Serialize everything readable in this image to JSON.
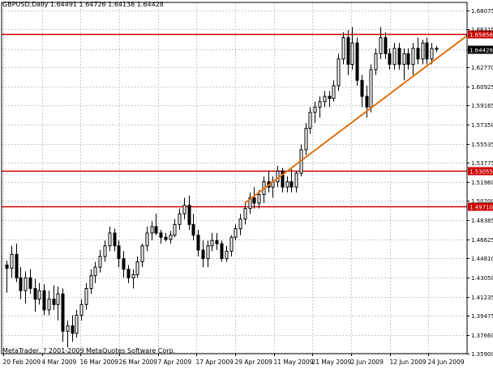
{
  "symbol_info": "GBPUSD,Daily  1.64491 1.64726 1.64138 1.64428",
  "copyright": "MetaTrader, ? 2001-2009 MetaQuotes Software Corp.",
  "colors": {
    "background": "#ffffff",
    "grid": "#c8c8c8",
    "frame": "#000000",
    "candle_body_up": "#ffffff",
    "candle_body_down": "#000000",
    "horizontal_lines": "#cc0000",
    "trend_line": "#e07010",
    "price_label_text": "#ffffff",
    "current_price_label_bg": "#000000"
  },
  "chart_data": {
    "type": "candlestick",
    "y_range": [
      1.359,
      1.688
    ],
    "y_ticks": [
      "1.68075",
      "1.66315",
      "1.64428",
      "1.62770",
      "1.60925",
      "1.59165",
      "1.57350",
      "1.55535",
      "1.53775",
      "1.51960",
      "1.50200",
      "1.48385",
      "1.46625",
      "1.44810",
      "1.43050",
      "1.41235",
      "1.39475",
      "1.37660",
      "1.35900"
    ],
    "x_labels": [
      "20 Feb 2009",
      "4 Mar 2009",
      "16 Mar 2009",
      "26 Mar 2009",
      "7 Apr 2009",
      "17 Apr 2009",
      "29 Apr 2009",
      "11 May 2009",
      "21 May 2009",
      "2 Jun 2009",
      "12 Jun 2009",
      "24 Jun 2009"
    ],
    "grid": true,
    "current_price": "1.64428",
    "horizontal_lines": [
      {
        "value": 1.65856,
        "label": "1.65856"
      },
      {
        "value": 1.53055,
        "label": "1.53055"
      },
      {
        "value": 1.4971,
        "label": "1.49710"
      }
    ],
    "trend_line": {
      "start": {
        "bar": 51,
        "price": 1.5
      },
      "end": {
        "bar": 95,
        "price": 1.645
      }
    },
    "candles": [
      {
        "o": 1.442,
        "h": 1.446,
        "l": 1.416,
        "c": 1.439
      },
      {
        "o": 1.439,
        "h": 1.46,
        "l": 1.43,
        "c": 1.452
      },
      {
        "o": 1.452,
        "h": 1.462,
        "l": 1.426,
        "c": 1.43
      },
      {
        "o": 1.43,
        "h": 1.44,
        "l": 1.41,
        "c": 1.418
      },
      {
        "o": 1.418,
        "h": 1.436,
        "l": 1.406,
        "c": 1.43
      },
      {
        "o": 1.43,
        "h": 1.438,
        "l": 1.415,
        "c": 1.42
      },
      {
        "o": 1.42,
        "h": 1.429,
        "l": 1.398,
        "c": 1.41
      },
      {
        "o": 1.41,
        "h": 1.425,
        "l": 1.405,
        "c": 1.418
      },
      {
        "o": 1.418,
        "h": 1.424,
        "l": 1.395,
        "c": 1.4
      },
      {
        "o": 1.4,
        "h": 1.418,
        "l": 1.395,
        "c": 1.41
      },
      {
        "o": 1.41,
        "h": 1.423,
        "l": 1.4,
        "c": 1.405
      },
      {
        "o": 1.405,
        "h": 1.422,
        "l": 1.39,
        "c": 1.415
      },
      {
        "o": 1.415,
        "h": 1.42,
        "l": 1.37,
        "c": 1.38
      },
      {
        "o": 1.38,
        "h": 1.39,
        "l": 1.365,
        "c": 1.385
      },
      {
        "o": 1.385,
        "h": 1.395,
        "l": 1.37,
        "c": 1.378
      },
      {
        "o": 1.378,
        "h": 1.4,
        "l": 1.374,
        "c": 1.395
      },
      {
        "o": 1.395,
        "h": 1.41,
        "l": 1.39,
        "c": 1.405
      },
      {
        "o": 1.405,
        "h": 1.425,
        "l": 1.4,
        "c": 1.42
      },
      {
        "o": 1.42,
        "h": 1.438,
        "l": 1.415,
        "c": 1.432
      },
      {
        "o": 1.432,
        "h": 1.445,
        "l": 1.425,
        "c": 1.44
      },
      {
        "o": 1.44,
        "h": 1.456,
        "l": 1.435,
        "c": 1.45
      },
      {
        "o": 1.45,
        "h": 1.465,
        "l": 1.445,
        "c": 1.46
      },
      {
        "o": 1.46,
        "h": 1.478,
        "l": 1.455,
        "c": 1.472
      },
      {
        "o": 1.472,
        "h": 1.476,
        "l": 1.455,
        "c": 1.46
      },
      {
        "o": 1.46,
        "h": 1.465,
        "l": 1.44,
        "c": 1.448
      },
      {
        "o": 1.448,
        "h": 1.455,
        "l": 1.43,
        "c": 1.438
      },
      {
        "o": 1.438,
        "h": 1.442,
        "l": 1.425,
        "c": 1.43
      },
      {
        "o": 1.43,
        "h": 1.438,
        "l": 1.42,
        "c": 1.433
      },
      {
        "o": 1.433,
        "h": 1.45,
        "l": 1.43,
        "c": 1.445
      },
      {
        "o": 1.445,
        "h": 1.462,
        "l": 1.44,
        "c": 1.46
      },
      {
        "o": 1.46,
        "h": 1.478,
        "l": 1.455,
        "c": 1.472
      },
      {
        "o": 1.472,
        "h": 1.483,
        "l": 1.465,
        "c": 1.478
      },
      {
        "o": 1.478,
        "h": 1.49,
        "l": 1.47,
        "c": 1.472
      },
      {
        "o": 1.472,
        "h": 1.475,
        "l": 1.462,
        "c": 1.468
      },
      {
        "o": 1.468,
        "h": 1.472,
        "l": 1.464,
        "c": 1.466
      },
      {
        "o": 1.466,
        "h": 1.474,
        "l": 1.462,
        "c": 1.47
      },
      {
        "o": 1.47,
        "h": 1.485,
        "l": 1.468,
        "c": 1.48
      },
      {
        "o": 1.48,
        "h": 1.495,
        "l": 1.475,
        "c": 1.49
      },
      {
        "o": 1.49,
        "h": 1.505,
        "l": 1.485,
        "c": 1.498
      },
      {
        "o": 1.498,
        "h": 1.507,
        "l": 1.475,
        "c": 1.48
      },
      {
        "o": 1.48,
        "h": 1.49,
        "l": 1.465,
        "c": 1.47
      },
      {
        "o": 1.47,
        "h": 1.475,
        "l": 1.45,
        "c": 1.456
      },
      {
        "o": 1.456,
        "h": 1.465,
        "l": 1.44,
        "c": 1.448
      },
      {
        "o": 1.448,
        "h": 1.465,
        "l": 1.44,
        "c": 1.46
      },
      {
        "o": 1.46,
        "h": 1.472,
        "l": 1.455,
        "c": 1.465
      },
      {
        "o": 1.465,
        "h": 1.472,
        "l": 1.456,
        "c": 1.462
      },
      {
        "o": 1.462,
        "h": 1.465,
        "l": 1.445,
        "c": 1.448
      },
      {
        "o": 1.448,
        "h": 1.46,
        "l": 1.445,
        "c": 1.455
      },
      {
        "o": 1.455,
        "h": 1.47,
        "l": 1.45,
        "c": 1.468
      },
      {
        "o": 1.468,
        "h": 1.48,
        "l": 1.465,
        "c": 1.476
      },
      {
        "o": 1.476,
        "h": 1.49,
        "l": 1.47,
        "c": 1.485
      },
      {
        "o": 1.485,
        "h": 1.5,
        "l": 1.48,
        "c": 1.495
      },
      {
        "o": 1.495,
        "h": 1.51,
        "l": 1.49,
        "c": 1.505
      },
      {
        "o": 1.505,
        "h": 1.515,
        "l": 1.495,
        "c": 1.5
      },
      {
        "o": 1.5,
        "h": 1.512,
        "l": 1.495,
        "c": 1.508
      },
      {
        "o": 1.508,
        "h": 1.525,
        "l": 1.5,
        "c": 1.52
      },
      {
        "o": 1.52,
        "h": 1.53,
        "l": 1.51,
        "c": 1.515
      },
      {
        "o": 1.515,
        "h": 1.525,
        "l": 1.505,
        "c": 1.52
      },
      {
        "o": 1.52,
        "h": 1.535,
        "l": 1.515,
        "c": 1.53
      },
      {
        "o": 1.53,
        "h": 1.533,
        "l": 1.51,
        "c": 1.515
      },
      {
        "o": 1.515,
        "h": 1.525,
        "l": 1.51,
        "c": 1.52
      },
      {
        "o": 1.52,
        "h": 1.532,
        "l": 1.51,
        "c": 1.515
      },
      {
        "o": 1.515,
        "h": 1.53,
        "l": 1.51,
        "c": 1.528
      },
      {
        "o": 1.528,
        "h": 1.555,
        "l": 1.525,
        "c": 1.55
      },
      {
        "o": 1.55,
        "h": 1.575,
        "l": 1.545,
        "c": 1.57
      },
      {
        "o": 1.57,
        "h": 1.59,
        "l": 1.565,
        "c": 1.585
      },
      {
        "o": 1.585,
        "h": 1.595,
        "l": 1.575,
        "c": 1.59
      },
      {
        "o": 1.59,
        "h": 1.6,
        "l": 1.58,
        "c": 1.595
      },
      {
        "o": 1.595,
        "h": 1.605,
        "l": 1.59,
        "c": 1.6
      },
      {
        "o": 1.6,
        "h": 1.605,
        "l": 1.59,
        "c": 1.598
      },
      {
        "o": 1.598,
        "h": 1.615,
        "l": 1.595,
        "c": 1.61
      },
      {
        "o": 1.61,
        "h": 1.64,
        "l": 1.605,
        "c": 1.635
      },
      {
        "o": 1.635,
        "h": 1.66,
        "l": 1.63,
        "c": 1.655
      },
      {
        "o": 1.655,
        "h": 1.662,
        "l": 1.62,
        "c": 1.63
      },
      {
        "o": 1.63,
        "h": 1.665,
        "l": 1.625,
        "c": 1.65
      },
      {
        "o": 1.65,
        "h": 1.655,
        "l": 1.61,
        "c": 1.615
      },
      {
        "o": 1.615,
        "h": 1.62,
        "l": 1.59,
        "c": 1.6
      },
      {
        "o": 1.6,
        "h": 1.61,
        "l": 1.58,
        "c": 1.59
      },
      {
        "o": 1.59,
        "h": 1.63,
        "l": 1.585,
        "c": 1.625
      },
      {
        "o": 1.625,
        "h": 1.645,
        "l": 1.62,
        "c": 1.64
      },
      {
        "o": 1.64,
        "h": 1.665,
        "l": 1.635,
        "c": 1.655
      },
      {
        "o": 1.655,
        "h": 1.66,
        "l": 1.635,
        "c": 1.64
      },
      {
        "o": 1.64,
        "h": 1.645,
        "l": 1.625,
        "c": 1.63
      },
      {
        "o": 1.63,
        "h": 1.65,
        "l": 1.625,
        "c": 1.645
      },
      {
        "o": 1.645,
        "h": 1.65,
        "l": 1.625,
        "c": 1.63
      },
      {
        "o": 1.63,
        "h": 1.645,
        "l": 1.615,
        "c": 1.64
      },
      {
        "o": 1.64,
        "h": 1.645,
        "l": 1.625,
        "c": 1.63
      },
      {
        "o": 1.63,
        "h": 1.65,
        "l": 1.62,
        "c": 1.645
      },
      {
        "o": 1.645,
        "h": 1.655,
        "l": 1.63,
        "c": 1.635
      },
      {
        "o": 1.635,
        "h": 1.653,
        "l": 1.63,
        "c": 1.65
      },
      {
        "o": 1.65,
        "h": 1.655,
        "l": 1.63,
        "c": 1.635
      },
      {
        "o": 1.635,
        "h": 1.65,
        "l": 1.63,
        "c": 1.6449
      },
      {
        "o": 1.6449,
        "h": 1.6473,
        "l": 1.6414,
        "c": 1.6443
      }
    ]
  }
}
